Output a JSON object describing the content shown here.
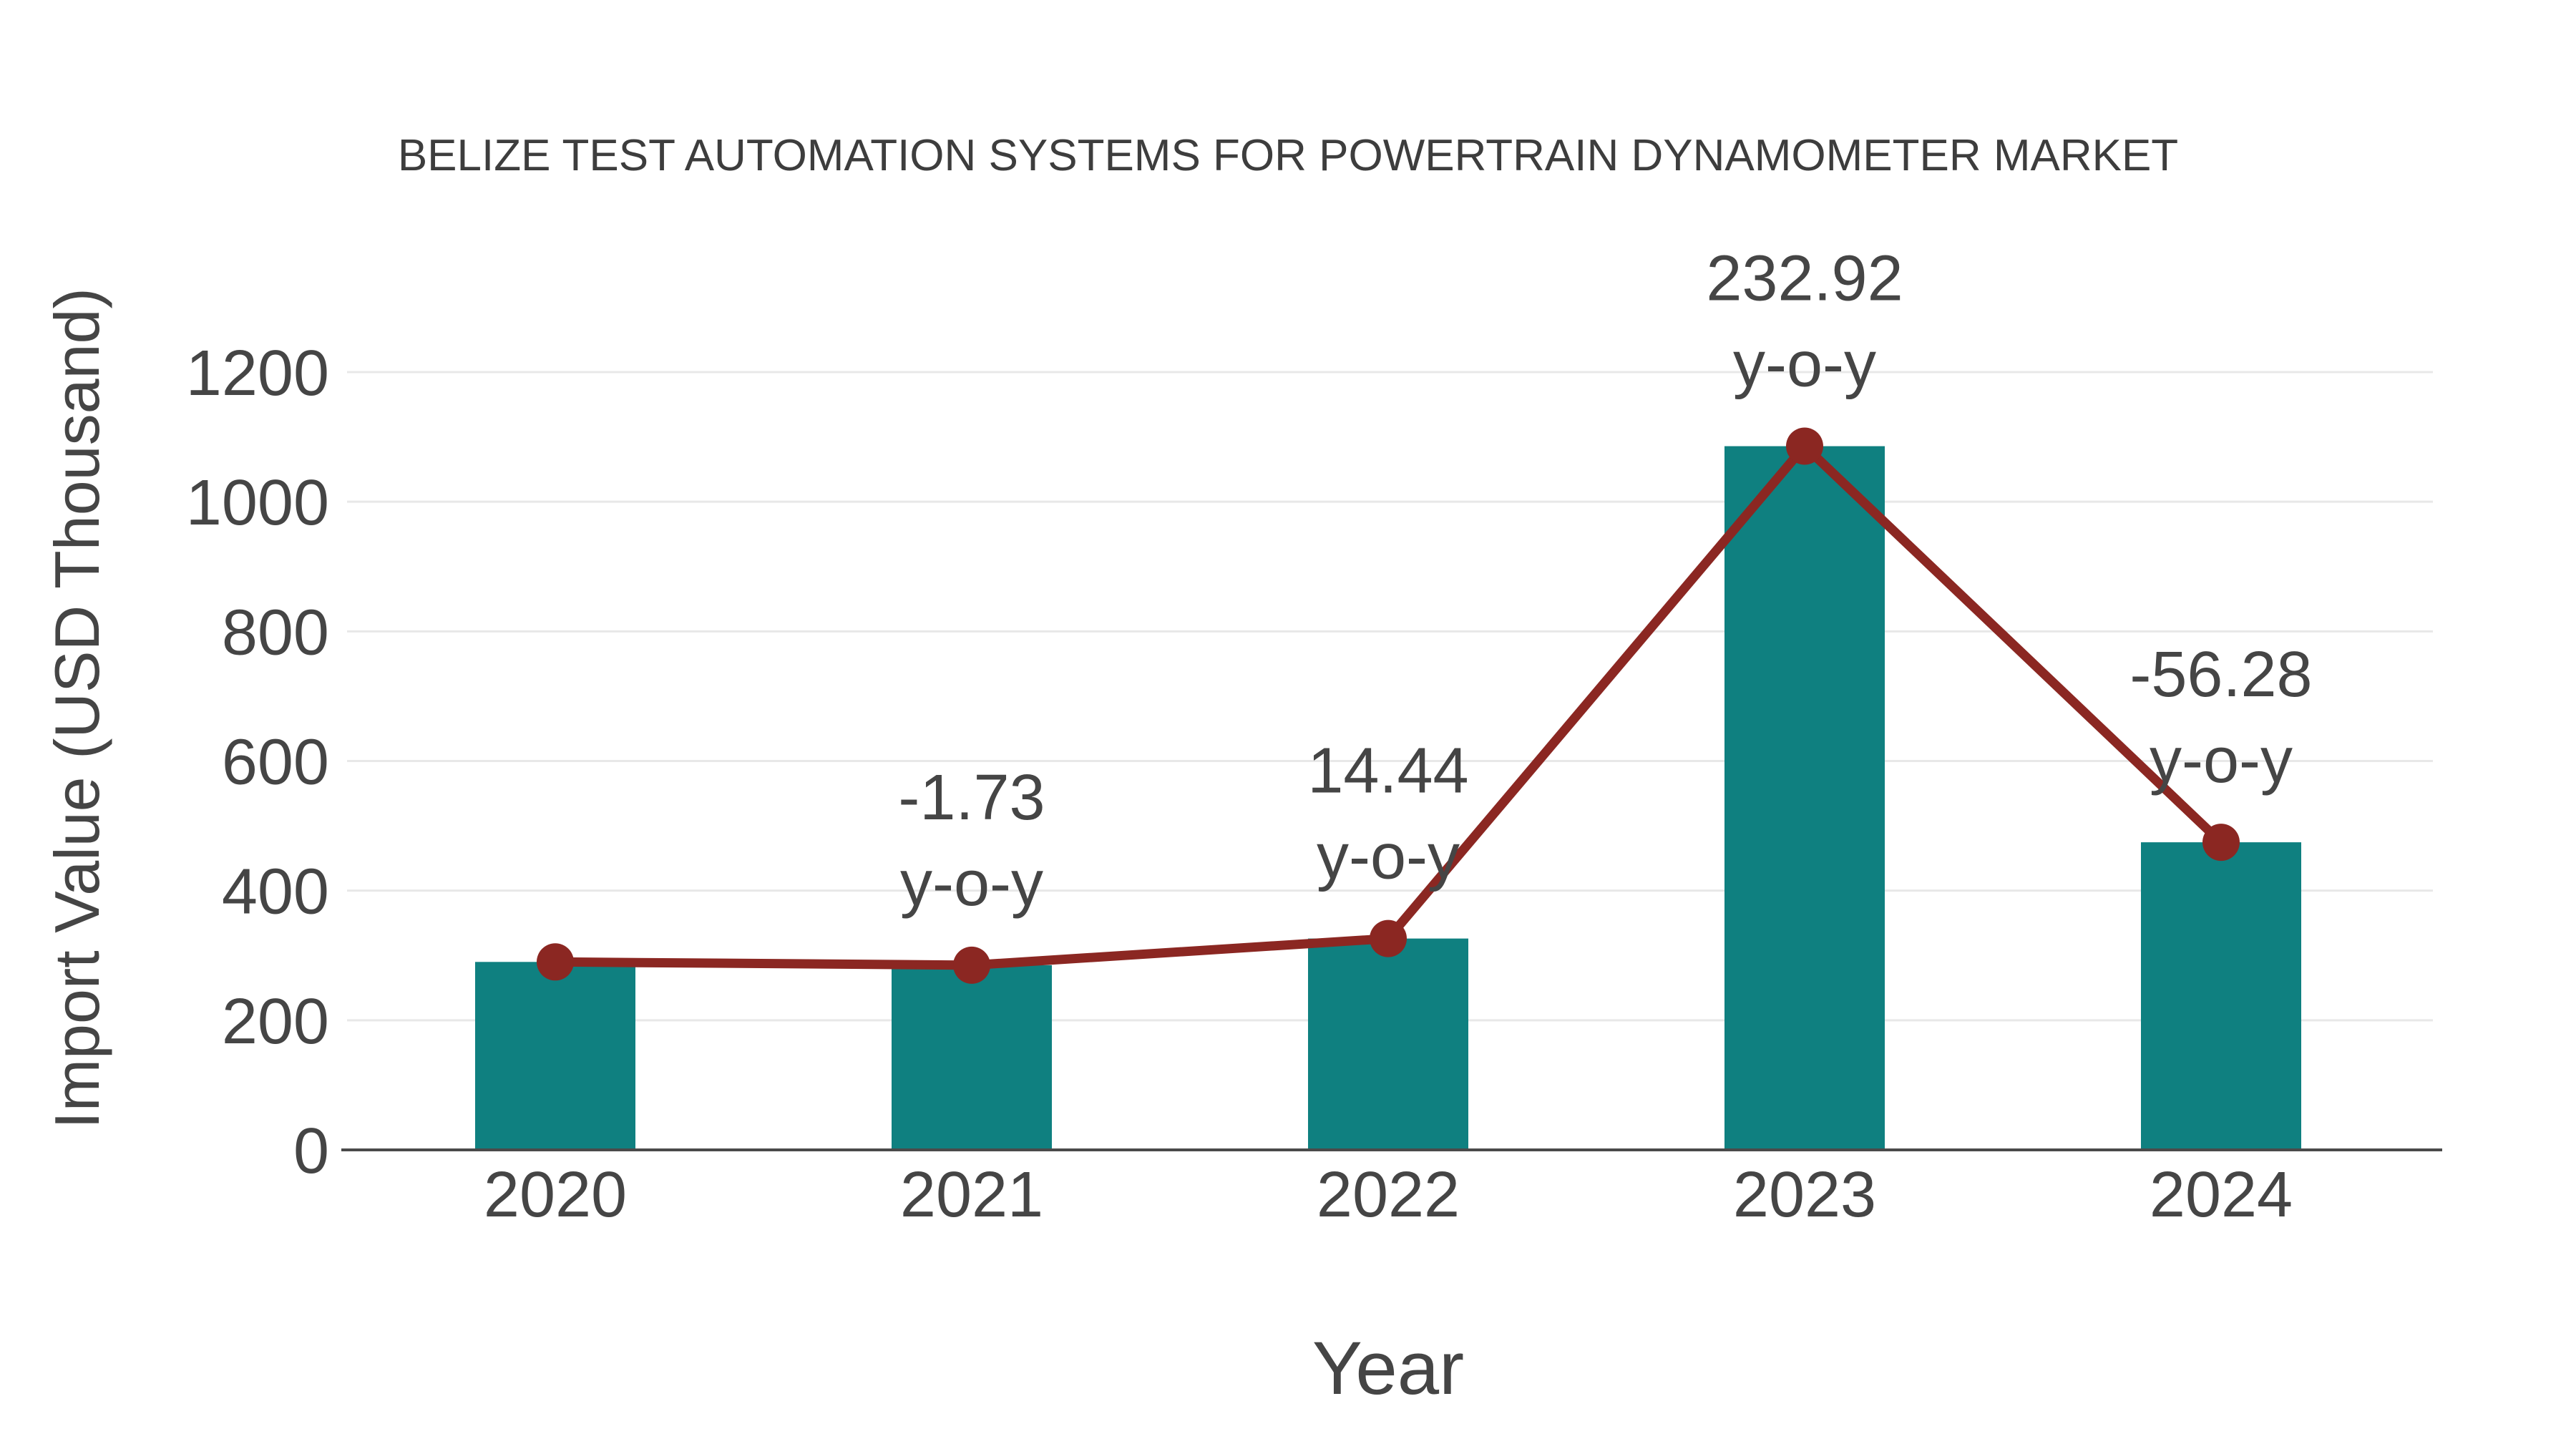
{
  "chart_data": {
    "type": "bar",
    "title": "BELIZE TEST AUTOMATION SYSTEMS FOR POWERTRAIN DYNAMOMETER MARKET",
    "xlabel": "Year",
    "ylabel": "Import Value (USD Thousand)",
    "categories": [
      "2020",
      "2021",
      "2022",
      "2023",
      "2024"
    ],
    "series": [
      {
        "name": "import-value-bars",
        "type": "bar",
        "color": "#0f8080",
        "values": [
          290,
          285,
          326.1,
          1085.7,
          474.6
        ]
      },
      {
        "name": "import-value-trend-line",
        "type": "line",
        "color": "#8b2722",
        "marker_color": "#8b2722",
        "values": [
          290,
          285,
          326.1,
          1085.7,
          474.6
        ]
      }
    ],
    "annotations": [
      {
        "category": "2021",
        "value_label": "-1.73",
        "suffix": "y-o-y"
      },
      {
        "category": "2022",
        "value_label": "14.44",
        "suffix": "y-o-y"
      },
      {
        "category": "2023",
        "value_label": "232.92",
        "suffix": "y-o-y"
      },
      {
        "category": "2024",
        "value_label": "-56.28",
        "suffix": "y-o-y"
      }
    ],
    "yticks": [
      0,
      200,
      400,
      600,
      800,
      1000,
      1200
    ],
    "ylim": [
      0,
      1200
    ],
    "grid": true,
    "legend": false,
    "colors": {
      "bar": "#0f8080",
      "line": "#8b2722",
      "marker": "#8b2722",
      "text": "#454545",
      "title_text": "#3d3d3d",
      "gridline": "#e8e8e8",
      "axis_line": "#4a4a4a",
      "background": "#ffffff"
    }
  }
}
